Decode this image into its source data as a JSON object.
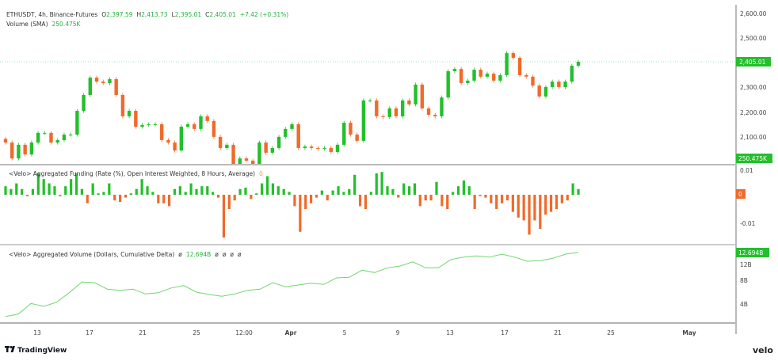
{
  "colors": {
    "up": "#22c02a",
    "down": "#f06a2a",
    "line": "#6fd66f",
    "price_line": "#7ad9c2",
    "axis": "#555555"
  },
  "price_legend": {
    "symbol": "ETHUSDT, 4h, Binance-Futures",
    "o_label": "O",
    "o": "2,397.59",
    "h_label": "H",
    "h": "2,413.73",
    "l_label": "L",
    "l": "2,395.01",
    "c_label": "C",
    "c": "2,405.01",
    "change": "+7.42 (+0.31%)",
    "volume_label": "Volume (SMA)",
    "volume_value": "250.475K"
  },
  "funding_legend": {
    "title": "<Velo> Aggregated Funding (Rate (%), Open Interest Weighted, 8 Hours, Average)",
    "value": "0"
  },
  "delta_legend": {
    "title": "<Velo> Aggregated Volume (Dollars, Cumulative Delta)",
    "v1": "ø",
    "value": "12.694B",
    "v2": "ø",
    "v3": "ø",
    "v4": "ø",
    "v5": "ø"
  },
  "price_axis": {
    "ticks": [
      "2,600.00",
      "2,500.00",
      "2,300.00",
      "2,200.00",
      "2,100.00"
    ],
    "current_price_tag": "2,405.01",
    "volume_tag": "250.475K"
  },
  "funding_axis": {
    "ticks": [
      "0.01",
      "-0.01"
    ],
    "tag": "0"
  },
  "delta_axis": {
    "ticks": [
      "12B",
      "8B",
      "4B"
    ],
    "tag": "12.694B"
  },
  "x_axis": {
    "ticks": [
      "13",
      "17",
      "21",
      "25",
      "12:00",
      "Apr",
      "5",
      "9",
      "13",
      "17",
      "21",
      "25",
      "May"
    ]
  },
  "branding": {
    "left": "TradingView",
    "right": "velo"
  },
  "chart_data": [
    {
      "type": "candlestick",
      "title": "ETHUSDT, 4h, Binance-Futures",
      "ylim": [
        1990,
        2630
      ],
      "y_ticks": [
        2100,
        2200,
        2300,
        2400,
        2500,
        2600
      ],
      "last_price": 2405.01,
      "close": [
        2079,
        2015,
        2070,
        2031,
        2079,
        2118,
        2118,
        2079,
        2089,
        2111,
        2111,
        2207,
        2271,
        2341,
        2325,
        2319,
        2335,
        2271,
        2185,
        2207,
        2143,
        2150,
        2153,
        2153,
        2089,
        2079,
        2047,
        2143,
        2153,
        2134,
        2185,
        2166,
        2102,
        2057,
        2070,
        1993,
        2015,
        2006,
        1993,
        2079,
        2038,
        2057,
        2102,
        2134,
        2153,
        2057,
        2063,
        2057,
        2054,
        2057,
        2041,
        2070,
        2159,
        2111,
        2086,
        2249,
        2249,
        2185,
        2182,
        2217,
        2185,
        2249,
        2233,
        2313,
        2217,
        2191,
        2185,
        2261,
        2367,
        2376,
        2319,
        2329,
        2373,
        2345,
        2357,
        2329,
        2351,
        2440,
        2421,
        2351,
        2345,
        2309,
        2265,
        2303,
        2325,
        2303,
        2325,
        2389,
        2405
      ]
    },
    {
      "type": "bar",
      "title": "<Velo> Aggregated Funding (Rate (%), Open Interest Weighted, 8 Hours, Average)",
      "ylim": [
        -0.016,
        0.01
      ],
      "y_ticks": [
        0.01,
        0,
        -0.01
      ],
      "values": [
        0.003,
        0.002,
        0.004,
        0.002,
        -0.0005,
        0.002,
        0.0075,
        0.0055,
        0.004,
        0.003,
        -0.0005,
        0.003,
        0.0055,
        0.0075,
        0.002,
        -0.003,
        0.004,
        0.0005,
        0.001,
        0.004,
        -0.002,
        -0.0025,
        -0.001,
        0.0005,
        0.002,
        0.0055,
        0.003,
        0.001,
        -0.003,
        -0.003,
        -0.004,
        0.002,
        0.003,
        0.001,
        0.004,
        0.002,
        0.003,
        0.003,
        0.001,
        -0.001,
        -0.015,
        -0.005,
        -0.002,
        0.002,
        0.0025,
        -0.0015,
        0.0005,
        0.004,
        0.0065,
        0.004,
        0.003,
        0.002,
        0.001,
        -0.004,
        -0.013,
        -0.005,
        -0.003,
        -0.001,
        0.0015,
        -0.002,
        0.0015,
        0.003,
        0.001,
        0.002,
        0.007,
        -0.004,
        -0.005,
        0.001,
        0.0075,
        0.008,
        0.003,
        0.002,
        -0.001,
        0.004,
        0.003,
        0.004,
        -0.004,
        -0.002,
        -0.002,
        0.0045,
        -0.004,
        -0.005,
        0.001,
        0.003,
        0.005,
        0.003,
        -0.005,
        -0.0005,
        -0.001,
        -0.003,
        -0.005,
        -0.003,
        -0.002,
        -0.006,
        -0.008,
        -0.009,
        -0.014,
        -0.009,
        -0.012,
        -0.007,
        -0.006,
        -0.005,
        -0.003,
        -0.002,
        0.004,
        0.002
      ]
    },
    {
      "type": "line",
      "title": "<Velo> Aggregated Volume (Dollars, Cumulative Delta)",
      "ylim": [
        0,
        13.2
      ],
      "y_ticks": [
        4,
        8,
        12
      ],
      "y_unit": "B",
      "values": [
        1.9,
        2.3,
        4.1,
        3.6,
        4.3,
        5.9,
        7.7,
        7.6,
        6.5,
        6.3,
        6.5,
        5.7,
        5.9,
        6.7,
        7.1,
        6.0,
        5.6,
        5.3,
        5.7,
        6.3,
        6.5,
        7.6,
        6.9,
        7.2,
        7.5,
        7.3,
        8.4,
        8.5,
        9.7,
        9.3,
        10.1,
        10.4,
        11.1,
        10.1,
        10.1,
        11.5,
        11.9,
        12.1,
        11.9,
        12.4,
        11.9,
        11.2,
        11.3,
        11.7,
        12.4,
        12.694
      ]
    }
  ]
}
